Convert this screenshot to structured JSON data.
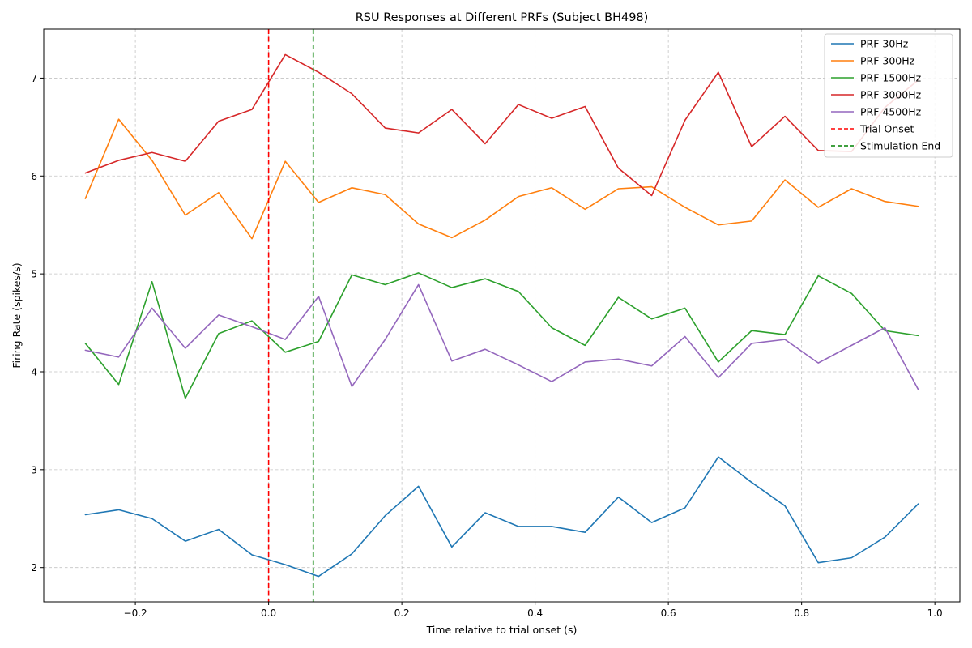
{
  "chart_data": {
    "type": "line",
    "title": "RSU Responses at Different PRFs (Subject BH498)",
    "xlabel": "Time relative to trial onset (s)",
    "ylabel": "Firing Rate (spikes/s)",
    "xlim": [
      -0.3375,
      1.0375
    ],
    "ylim": [
      1.65,
      7.5
    ],
    "xticks": [
      -0.2,
      0.0,
      0.2,
      0.4,
      0.6,
      0.8,
      1.0
    ],
    "xtick_labels": [
      "−0.2",
      "0.0",
      "0.2",
      "0.4",
      "0.6",
      "0.8",
      "1.0"
    ],
    "yticks": [
      2,
      3,
      4,
      5,
      6,
      7
    ],
    "ytick_labels": [
      "2",
      "3",
      "4",
      "5",
      "6",
      "7"
    ],
    "grid": true,
    "legend_position": "top-right",
    "x": [
      -0.275,
      -0.225,
      -0.175,
      -0.125,
      -0.075,
      -0.025,
      0.025,
      0.075,
      0.125,
      0.175,
      0.225,
      0.275,
      0.325,
      0.375,
      0.425,
      0.475,
      0.525,
      0.575,
      0.625,
      0.675,
      0.725,
      0.775,
      0.825,
      0.875,
      0.925,
      0.975
    ],
    "series": [
      {
        "name": "PRF 30Hz",
        "color": "#1f77b4",
        "values": [
          2.54,
          2.59,
          2.5,
          2.27,
          2.39,
          2.13,
          2.03,
          1.91,
          2.14,
          2.53,
          2.83,
          2.21,
          2.56,
          2.42,
          2.42,
          2.36,
          2.72,
          2.46,
          2.61,
          3.13,
          2.87,
          2.63,
          2.05,
          2.1,
          2.31,
          2.65
        ]
      },
      {
        "name": "PRF 300Hz",
        "color": "#ff7f0e",
        "values": [
          5.77,
          6.58,
          6.16,
          5.6,
          5.83,
          5.36,
          6.15,
          5.73,
          5.88,
          5.81,
          5.51,
          5.37,
          5.55,
          5.79,
          5.88,
          5.66,
          5.87,
          5.89,
          5.68,
          5.5,
          5.54,
          5.96,
          5.68,
          5.87,
          5.74,
          5.69
        ]
      },
      {
        "name": "PRF 1500Hz",
        "color": "#2ca02c",
        "values": [
          4.29,
          3.87,
          4.92,
          3.73,
          4.39,
          4.52,
          4.2,
          4.31,
          4.99,
          4.89,
          5.01,
          4.86,
          4.95,
          4.82,
          4.45,
          4.27,
          4.76,
          4.54,
          4.65,
          4.1,
          4.42,
          4.38,
          4.98,
          4.8,
          4.42,
          4.37
        ]
      },
      {
        "name": "PRF 3000Hz",
        "color": "#d62728",
        "values": [
          6.03,
          6.16,
          6.24,
          6.15,
          6.56,
          6.68,
          7.24,
          7.06,
          6.84,
          6.49,
          6.44,
          6.68,
          6.33,
          6.73,
          6.59,
          6.71,
          6.08,
          5.8,
          6.57,
          7.06,
          6.3,
          6.61,
          6.26,
          6.25,
          6.7,
          6.98
        ]
      },
      {
        "name": "PRF 4500Hz",
        "color": "#9467bd",
        "values": [
          4.22,
          4.15,
          4.65,
          4.24,
          4.58,
          4.46,
          4.33,
          4.77,
          3.85,
          4.33,
          4.89,
          4.11,
          4.23,
          4.07,
          3.9,
          4.1,
          4.13,
          4.06,
          4.36,
          3.94,
          4.29,
          4.33,
          4.09,
          4.27,
          4.45,
          3.82
        ]
      }
    ],
    "vlines": [
      {
        "name": "Trial Onset",
        "x": 0.0,
        "color": "#ff0000",
        "style": "dashed"
      },
      {
        "name": "Stimulation End",
        "x": 0.067,
        "color": "#008000",
        "style": "dashed"
      }
    ]
  }
}
